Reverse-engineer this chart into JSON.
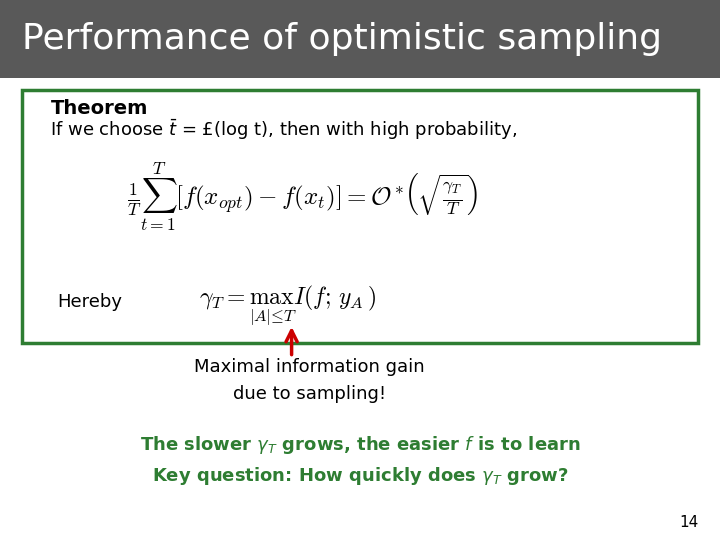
{
  "title": "Performance of optimistic sampling",
  "title_color": "#ffffff",
  "title_bg_color": "#595959",
  "slide_bg_color": "#ffffff",
  "box_border_color": "#2e7d32",
  "theorem_label": "Theorem",
  "annotation_text": "Maximal information gain\ndue to sampling!",
  "annotation_color": "#000000",
  "green_line1": "The slower $\\gamma_T$ grows, the easier $f$ is to learn",
  "green_line2": "Key question: How quickly does $\\gamma_T$ grow?",
  "green_color": "#2e7d32",
  "arrow_color": "#cc0000",
  "page_number": "14",
  "font_size_title": 26,
  "font_size_body": 13
}
